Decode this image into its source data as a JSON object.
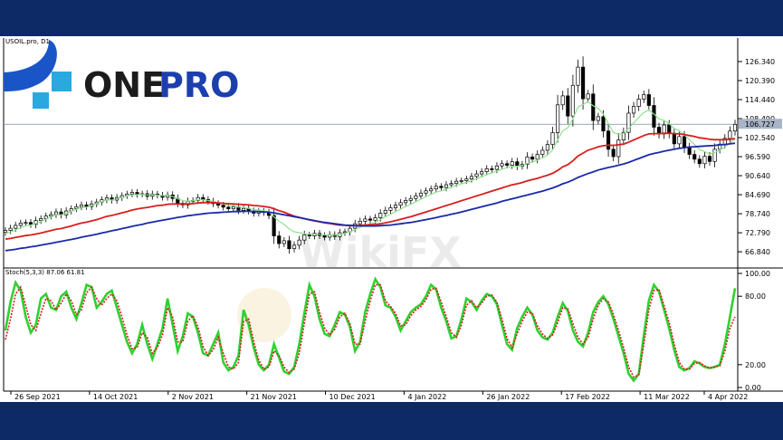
{
  "logo": {
    "text_one": "ONE",
    "text_pro": "PRO",
    "colors": {
      "one": "#1c1c1c",
      "pro": "#1c3fae",
      "mark": "#1a55c8",
      "mark_light": "#2aa8e0"
    }
  },
  "watermark": {
    "text": "WikiFX"
  },
  "chart_data": [
    {
      "type": "line",
      "subtype": "candlestick",
      "title": "USOIL.pro, D1",
      "price_label": "106.727",
      "ylim": [
        62.9,
        130.3
      ],
      "y_ticks": [
        "126.340",
        "120.390",
        "114.440",
        "108.490",
        "102.540",
        "96.590",
        "90.640",
        "84.690",
        "78.740",
        "72.790",
        "66.840"
      ],
      "x_ticks": [
        "26 Sep 2021",
        "14 Oct 2021",
        "2 Nov 2021",
        "21 Nov 2021",
        "10 Dec 2021",
        "4 Jan 2022",
        "26 Jan 2022",
        "17 Feb 2022",
        "11 Mar 2022",
        "4 Apr 2022"
      ],
      "bar_count": 145,
      "close": [
        73.5,
        74.2,
        75.1,
        75.8,
        76.0,
        75.4,
        76.6,
        77.2,
        78.0,
        78.5,
        79.3,
        78.4,
        79.6,
        80.3,
        80.9,
        81.5,
        81.0,
        81.8,
        82.4,
        83.1,
        83.7,
        83.0,
        83.8,
        84.4,
        84.9,
        85.4,
        84.8,
        85.0,
        84.2,
        84.9,
        84.5,
        83.9,
        84.6,
        83.5,
        82.0,
        81.5,
        82.6,
        82.9,
        83.8,
        83.2,
        82.6,
        81.9,
        81.4,
        80.8,
        80.3,
        80.9,
        79.8,
        80.4,
        79.6,
        78.9,
        79.5,
        79.1,
        78.2,
        71.8,
        69.4,
        70.3,
        67.8,
        68.9,
        70.5,
        72.1,
        71.8,
        72.6,
        71.9,
        71.4,
        72.2,
        71.6,
        72.8,
        73.1,
        74.2,
        75.6,
        76.4,
        77.1,
        76.7,
        77.5,
        78.9,
        79.8,
        80.6,
        81.4,
        82.2,
        82.9,
        83.5,
        84.3,
        85.2,
        85.9,
        86.5,
        87.3,
        86.9,
        87.8,
        88.2,
        88.9,
        89.1,
        89.6,
        90.4,
        91.2,
        91.9,
        92.8,
        92.6,
        93.7,
        94.4,
        93.9,
        95.0,
        93.6,
        94.2,
        96.5,
        95.8,
        97.3,
        98.6,
        100.4,
        104.1,
        112.8,
        115.6,
        109.3,
        118.9,
        124.6,
        114.7,
        116.2,
        107.9,
        109.1,
        104.6,
        98.9,
        96.6,
        101.8,
        104.2,
        110.2,
        112.3,
        114.6,
        116.0,
        112.6,
        105.8,
        103.7,
        106.5,
        103.9,
        100.6,
        102.9,
        99.5,
        97.3,
        95.8,
        94.4,
        96.7,
        95.1,
        98.9,
        100.5,
        102.3,
        104.6,
        106.7
      ],
      "series": [
        {
          "name": "",
          "color": "#8fe38f",
          "values": [
            72.6,
            73.0,
            73.7,
            74.4,
            75.0,
            75.2,
            75.7,
            76.3,
            77.0,
            77.7,
            78.4,
            78.4,
            78.9,
            79.5,
            80.1,
            80.7,
            80.8,
            81.3,
            81.9,
            82.5,
            83.1,
            83.0,
            83.4,
            83.8,
            84.3,
            84.7,
            84.7,
            84.8,
            84.6,
            84.7,
            84.6,
            84.4,
            84.5,
            84.1,
            83.4,
            82.8,
            82.7,
            82.8,
            83.1,
            83.1,
            82.9,
            82.6,
            82.2,
            81.8,
            81.3,
            81.2,
            80.8,
            80.7,
            80.4,
            80.0,
            79.9,
            79.7,
            79.3,
            77.7,
            76.4,
            75.4,
            74.0,
            73.1,
            72.8,
            72.5,
            72.3,
            72.4,
            72.3,
            72.1,
            72.1,
            72.0,
            72.3,
            72.6,
            73.1,
            73.8,
            74.5,
            75.2,
            75.5,
            76.1,
            76.9,
            77.8,
            78.6,
            79.4,
            80.2,
            81.0,
            81.7,
            82.5,
            83.3,
            84.1,
            84.8,
            85.5,
            85.9,
            86.5,
            87.1,
            87.6,
            88.1,
            88.5,
            89.1,
            89.7,
            90.3,
            91.0,
            91.5,
            92.1,
            92.7,
            93.1,
            93.6,
            93.6,
            93.8,
            94.5,
            94.9,
            95.5,
            96.2,
            97.1,
            98.7,
            101.9,
            104.7,
            105.6,
            108.4,
            112.1,
            112.9,
            113.8,
            112.5,
            111.7,
            109.9,
            106.9,
            104.1,
            103.6,
            103.8,
            105.4,
            107.2,
            108.9,
            110.4,
            111.2,
            109.9,
            108.4,
            107.9,
            106.9,
            105.4,
            104.7,
            103.4,
            101.9,
            100.4,
            98.8,
            98.2,
            97.4,
            97.9,
            98.6,
            99.6,
            100.8,
            102.2
          ]
        },
        {
          "name": "",
          "color": "#d81e1e",
          "values": [
            70.8,
            71.0,
            71.3,
            71.6,
            71.9,
            72.1,
            72.4,
            72.7,
            73.1,
            73.5,
            73.9,
            74.1,
            74.5,
            74.9,
            75.4,
            75.8,
            76.1,
            76.5,
            76.9,
            77.4,
            77.9,
            78.2,
            78.6,
            79.0,
            79.4,
            79.9,
            80.2,
            80.5,
            80.7,
            81.0,
            81.3,
            81.4,
            81.7,
            81.8,
            81.8,
            81.8,
            81.8,
            81.9,
            82.1,
            82.2,
            82.2,
            82.2,
            82.1,
            82.0,
            81.9,
            81.8,
            81.7,
            81.6,
            81.5,
            81.3,
            81.2,
            81.0,
            80.8,
            80.3,
            79.7,
            79.2,
            78.6,
            78.0,
            77.6,
            77.2,
            76.8,
            76.5,
            76.2,
            75.9,
            75.7,
            75.4,
            75.2,
            75.1,
            75.0,
            75.0,
            75.1,
            75.2,
            75.3,
            75.4,
            75.6,
            75.9,
            76.2,
            76.6,
            77.0,
            77.4,
            77.8,
            78.3,
            78.8,
            79.3,
            79.8,
            80.3,
            80.8,
            81.3,
            81.8,
            82.3,
            82.8,
            83.3,
            83.8,
            84.3,
            84.8,
            85.3,
            85.8,
            86.3,
            86.8,
            87.3,
            87.8,
            88.1,
            88.5,
            89.0,
            89.4,
            89.8,
            90.3,
            90.8,
            91.4,
            92.3,
            93.4,
            94.1,
            95.3,
            96.8,
            97.7,
            98.6,
            99.1,
            99.7,
            100.0,
            100.2,
            100.1,
            100.3,
            100.5,
            101.1,
            101.8,
            102.5,
            103.2,
            103.7,
            103.8,
            103.8,
            103.9,
            103.9,
            103.8,
            103.7,
            103.5,
            103.2,
            102.9,
            102.5,
            102.3,
            102.0,
            101.9,
            101.9,
            101.9,
            102.0,
            102.2
          ]
        },
        {
          "name": "",
          "color": "#1a2aa8",
          "values": [
            67.2,
            67.4,
            67.6,
            67.9,
            68.1,
            68.4,
            68.6,
            68.9,
            69.2,
            69.5,
            69.8,
            70.1,
            70.4,
            70.7,
            71.0,
            71.4,
            71.7,
            72.0,
            72.3,
            72.7,
            73.0,
            73.4,
            73.7,
            74.1,
            74.4,
            74.8,
            75.1,
            75.4,
            75.8,
            76.1,
            76.4,
            76.7,
            77.0,
            77.3,
            77.6,
            77.8,
            78.1,
            78.3,
            78.5,
            78.7,
            78.9,
            79.0,
            79.1,
            79.2,
            79.3,
            79.4,
            79.4,
            79.5,
            79.5,
            79.4,
            79.4,
            79.3,
            79.2,
            79.0,
            78.7,
            78.4,
            78.1,
            77.8,
            77.5,
            77.2,
            76.9,
            76.6,
            76.3,
            76.0,
            75.8,
            75.6,
            75.4,
            75.2,
            75.1,
            75.0,
            74.9,
            74.9,
            74.9,
            74.9,
            75.0,
            75.1,
            75.2,
            75.4,
            75.6,
            75.8,
            76.0,
            76.3,
            76.6,
            76.9,
            77.2,
            77.5,
            77.9,
            78.2,
            78.6,
            78.9,
            79.3,
            79.7,
            80.1,
            80.5,
            80.9,
            81.3,
            81.7,
            82.1,
            82.6,
            83.0,
            83.4,
            83.8,
            84.2,
            84.6,
            85.0,
            85.4,
            85.8,
            86.3,
            86.8,
            87.4,
            88.1,
            88.6,
            89.3,
            90.1,
            90.7,
            91.3,
            91.8,
            92.4,
            92.8,
            93.2,
            93.5,
            93.9,
            94.3,
            94.8,
            95.4,
            96.0,
            96.6,
            97.2,
            97.6,
            97.9,
            98.3,
            98.6,
            98.9,
            99.2,
            99.4,
            99.6,
            99.7,
            99.8,
            99.9,
            100.0,
            100.1,
            100.3,
            100.4,
            100.6,
            100.8
          ]
        }
      ]
    },
    {
      "type": "line",
      "title": "Stoch(5,3,3) 87.06 61.81",
      "ylim": [
        0,
        100
      ],
      "y_ticks": [
        "100.00",
        "80.00",
        "20.00",
        "0.00"
      ],
      "series": [
        {
          "name": "",
          "color": "#2fd12f",
          "values": [
            50,
            75,
            92,
            85,
            62,
            48,
            55,
            78,
            82,
            70,
            68,
            80,
            84,
            70,
            60,
            74,
            90,
            88,
            70,
            75,
            82,
            85,
            70,
            55,
            40,
            30,
            38,
            55,
            38,
            25,
            38,
            52,
            78,
            55,
            32,
            45,
            65,
            62,
            48,
            30,
            28,
            38,
            48,
            22,
            15,
            18,
            28,
            68,
            55,
            35,
            20,
            15,
            20,
            38,
            26,
            14,
            12,
            18,
            38,
            65,
            90,
            80,
            60,
            47,
            45,
            55,
            66,
            64,
            53,
            32,
            40,
            66,
            82,
            95,
            88,
            72,
            70,
            62,
            50,
            58,
            66,
            70,
            73,
            80,
            90,
            86,
            70,
            58,
            43,
            45,
            60,
            78,
            75,
            68,
            76,
            82,
            80,
            73,
            55,
            38,
            33,
            52,
            62,
            70,
            64,
            50,
            44,
            42,
            48,
            62,
            74,
            67,
            50,
            40,
            36,
            48,
            66,
            75,
            80,
            73,
            60,
            45,
            30,
            12,
            6,
            12,
            46,
            76,
            90,
            84,
            68,
            52,
            33,
            18,
            15,
            17,
            23,
            21,
            18,
            17,
            18,
            20,
            38,
            62,
            87
          ]
        },
        {
          "name": "",
          "color": "#d81e1e",
          "values": [
            42,
            60,
            82,
            88,
            72,
            55,
            50,
            65,
            78,
            76,
            68,
            74,
            82,
            76,
            64,
            68,
            83,
            88,
            78,
            72,
            78,
            82,
            76,
            62,
            46,
            34,
            35,
            48,
            44,
            30,
            35,
            46,
            70,
            62,
            40,
            40,
            58,
            63,
            53,
            36,
            28,
            33,
            44,
            30,
            18,
            16,
            22,
            58,
            60,
            40,
            24,
            16,
            18,
            32,
            28,
            18,
            13,
            16,
            30,
            56,
            82,
            84,
            66,
            52,
            46,
            51,
            62,
            65,
            56,
            38,
            38,
            58,
            76,
            90,
            90,
            76,
            71,
            65,
            54,
            55,
            63,
            68,
            71,
            77,
            86,
            87,
            75,
            62,
            48,
            44,
            55,
            72,
            76,
            70,
            74,
            80,
            81,
            75,
            60,
            43,
            35,
            47,
            58,
            66,
            65,
            54,
            47,
            43,
            46,
            57,
            70,
            69,
            56,
            44,
            38,
            44,
            60,
            72,
            78,
            75,
            64,
            50,
            35,
            18,
            9,
            11,
            38,
            68,
            85,
            86,
            72,
            57,
            38,
            22,
            16,
            16,
            21,
            22,
            19,
            17,
            18,
            19,
            32,
            52,
            62
          ]
        }
      ]
    }
  ]
}
